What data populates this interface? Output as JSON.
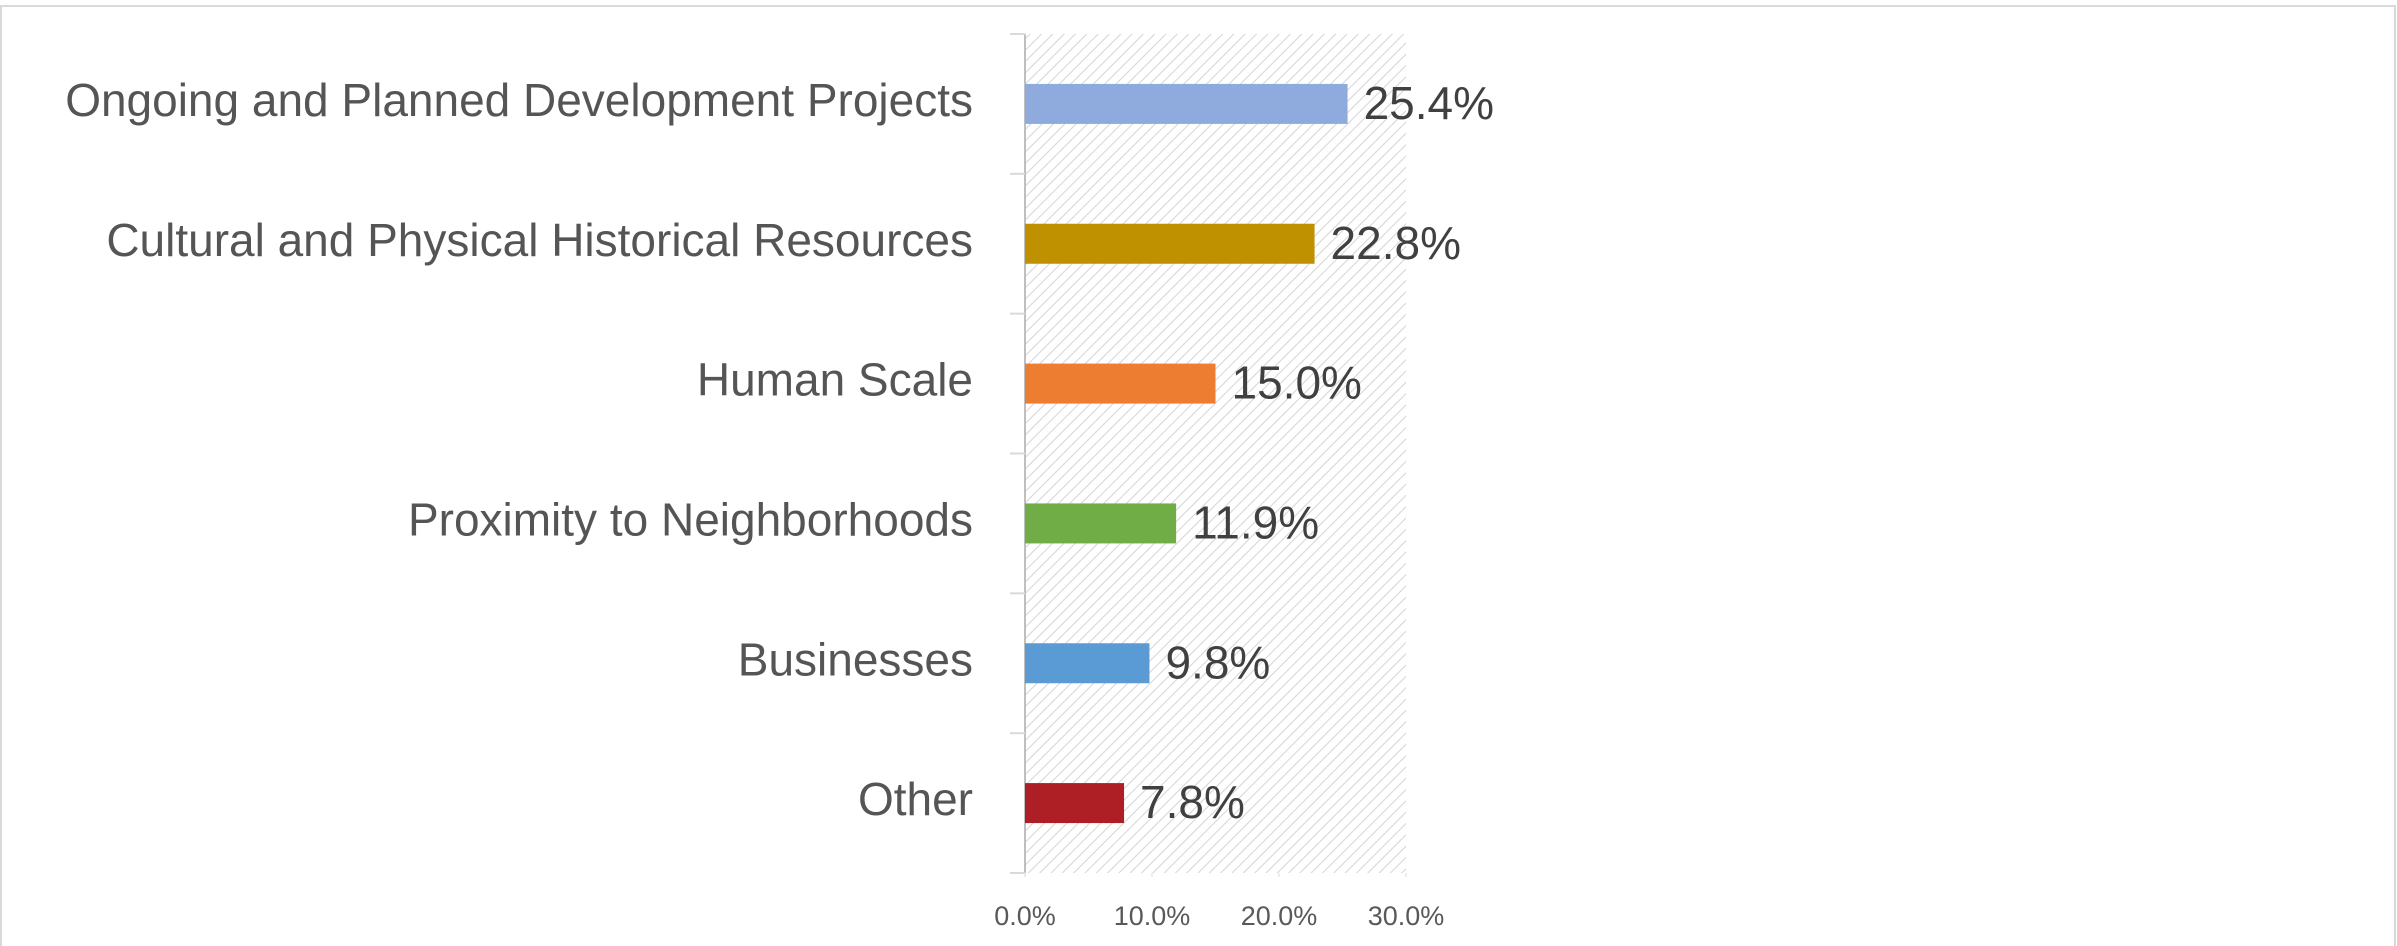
{
  "chart_data": {
    "type": "bar",
    "orientation": "horizontal",
    "categories": [
      "Ongoing and Planned Development Projects",
      "Cultural and Physical Historical Resources",
      "Human Scale",
      "Proximity to Neighborhoods",
      "Businesses",
      "Other"
    ],
    "values": [
      25.4,
      22.8,
      15.0,
      11.9,
      9.8,
      7.8
    ],
    "value_labels": [
      "25.4%",
      "22.8%",
      "15.0%",
      "11.9%",
      "9.8%",
      "7.8%"
    ],
    "colors": [
      "#8faadc",
      "#bf9000",
      "#ed7d31",
      "#70ad47",
      "#5b9bd5",
      "#ad1f24"
    ],
    "xlim": [
      0,
      30
    ],
    "xticks": [
      {
        "value": 0,
        "label": "0.0%"
      },
      {
        "value": 10,
        "label": "10.0%"
      },
      {
        "value": 20,
        "label": "20.0%"
      },
      {
        "value": 30,
        "label": "30.0%"
      }
    ],
    "grid": false
  }
}
